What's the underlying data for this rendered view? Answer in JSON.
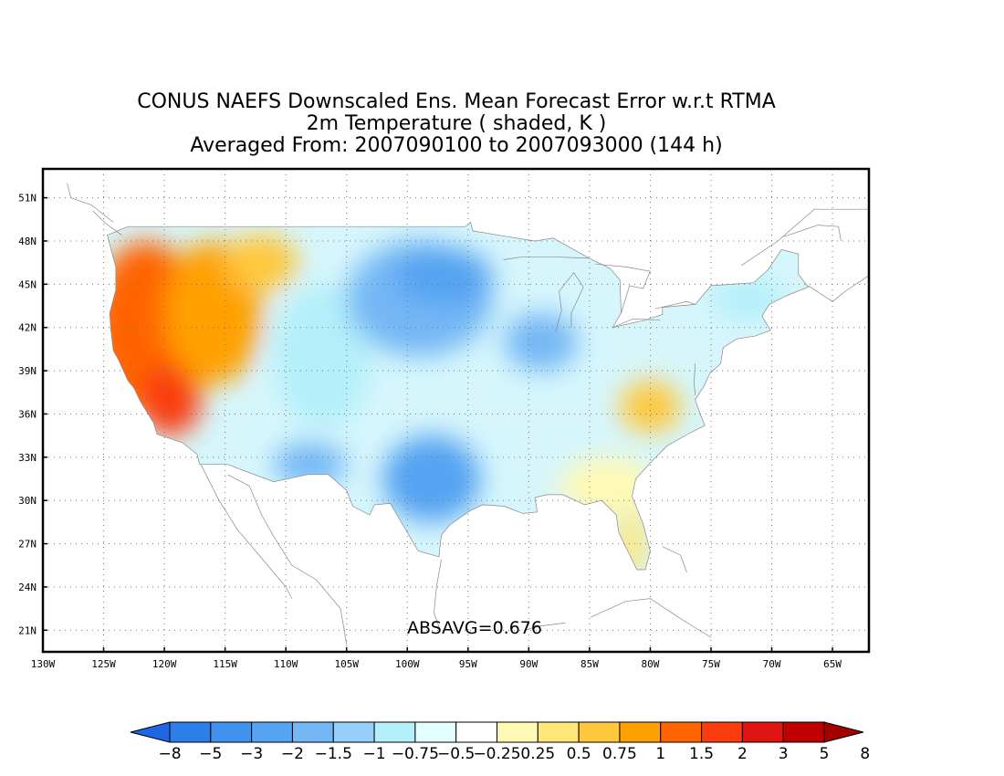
{
  "title": {
    "line1": "CONUS NAEFS Downscaled Ens. Mean Forecast Error w.r.t RTMA",
    "line2": "2m Temperature ( shaded, K )",
    "line3": "Averaged From: 2007090100 to 2007093000 (144 h)"
  },
  "annotation": "ABSAVG=0.676",
  "axes": {
    "lon_range": [
      -130,
      -62
    ],
    "lat_range": [
      19.5,
      53
    ],
    "lon_ticks": [
      {
        "value": -130,
        "label": "130W"
      },
      {
        "value": -125,
        "label": "125W"
      },
      {
        "value": -120,
        "label": "120W"
      },
      {
        "value": -115,
        "label": "115W"
      },
      {
        "value": -110,
        "label": "110W"
      },
      {
        "value": -105,
        "label": "105W"
      },
      {
        "value": -100,
        "label": "100W"
      },
      {
        "value": -95,
        "label": "95W"
      },
      {
        "value": -90,
        "label": "90W"
      },
      {
        "value": -85,
        "label": "85W"
      },
      {
        "value": -80,
        "label": "80W"
      },
      {
        "value": -75,
        "label": "75W"
      },
      {
        "value": -70,
        "label": "70W"
      },
      {
        "value": -65,
        "label": "65W"
      }
    ],
    "lat_ticks": [
      {
        "value": 21,
        "label": "21N"
      },
      {
        "value": 24,
        "label": "24N"
      },
      {
        "value": 27,
        "label": "27N"
      },
      {
        "value": 30,
        "label": "30N"
      },
      {
        "value": 33,
        "label": "33N"
      },
      {
        "value": 36,
        "label": "36N"
      },
      {
        "value": 39,
        "label": "39N"
      },
      {
        "value": 42,
        "label": "42N"
      },
      {
        "value": 45,
        "label": "45N"
      },
      {
        "value": 48,
        "label": "48N"
      },
      {
        "value": 51,
        "label": "51N"
      }
    ],
    "grid": "dotted"
  },
  "colorbar": {
    "colors": [
      "#1f66e5",
      "#2c7fe8",
      "#3f93ee",
      "#55a3f2",
      "#74b7f5",
      "#96d0fa",
      "#b4effa",
      "#e1ffff",
      "#ffffff",
      "#fff9b4",
      "#ffe678",
      "#ffc83c",
      "#ffa000",
      "#ff6400",
      "#fa3c0f",
      "#e11414",
      "#c00000",
      "#a50000"
    ],
    "labels": [
      "−8",
      "−5",
      "−3",
      "−2",
      "−1.5",
      "−1",
      "−0.75",
      "−0.5",
      "−0.25",
      "0.25",
      "0.5",
      "0.75",
      "1",
      "1.5",
      "2",
      "3",
      "5",
      "8"
    ]
  },
  "regions": [
    {
      "name": "west-coast-warm",
      "lon": -121.5,
      "lat": 42,
      "rlon": 4.5,
      "rlat": 6,
      "color": "#ff6400"
    },
    {
      "name": "california-warm",
      "lon": -119.5,
      "lat": 37,
      "rlon": 2.5,
      "rlat": 2.5,
      "color": "#fa3c0f"
    },
    {
      "name": "great-basin-warm",
      "lon": -116,
      "lat": 43,
      "rlon": 4,
      "rlat": 5,
      "color": "#ffa000"
    },
    {
      "name": "nw-interior-warm",
      "lon": -112,
      "lat": 46.5,
      "rlon": 3,
      "rlat": 2,
      "color": "#ffc83c"
    },
    {
      "name": "rockies-cool",
      "lon": -107,
      "lat": 40,
      "rlon": 4,
      "rlat": 5,
      "color": "#b4effa"
    },
    {
      "name": "northern-plains-cool",
      "lon": -99,
      "lat": 44,
      "rlon": 6,
      "rlat": 4,
      "color": "#74b7f5"
    },
    {
      "name": "northern-plains-core",
      "lon": -97,
      "lat": 45.5,
      "rlon": 4,
      "rlat": 2,
      "color": "#55a3f2"
    },
    {
      "name": "texas-cool",
      "lon": -98,
      "lat": 31.5,
      "rlon": 4,
      "rlat": 3,
      "color": "#55a3f2"
    },
    {
      "name": "midwest-cool",
      "lon": -89,
      "lat": 41,
      "rlon": 3,
      "rlat": 2,
      "color": "#74b7f5"
    },
    {
      "name": "sw-border-cool",
      "lon": -108,
      "lat": 32.5,
      "rlon": 3,
      "rlat": 1.5,
      "color": "#74b7f5"
    },
    {
      "name": "appalachian-warm",
      "lon": -80,
      "lat": 36.5,
      "rlon": 2.5,
      "rlat": 1.8,
      "color": "#ffc83c"
    },
    {
      "name": "southeast-warm",
      "lon": -83.5,
      "lat": 31,
      "rlon": 4,
      "rlat": 2,
      "color": "#fff9b4"
    },
    {
      "name": "florida-warm",
      "lon": -81.5,
      "lat": 27,
      "rlon": 1.2,
      "rlat": 2.5,
      "color": "#ffe678"
    },
    {
      "name": "new-england-cool",
      "lon": -72,
      "lat": 44,
      "rlon": 3,
      "rlat": 1.5,
      "color": "#b4effa"
    }
  ]
}
